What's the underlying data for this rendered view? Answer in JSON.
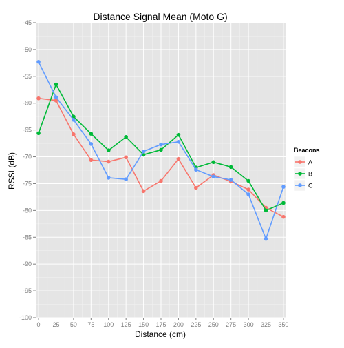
{
  "chart_data": {
    "type": "line",
    "title": "Distance Signal Mean (Moto G)",
    "xlabel": "Distance (cm)",
    "ylabel": "RSSI (dB)",
    "x": [
      0,
      25,
      50,
      75,
      100,
      125,
      150,
      175,
      200,
      225,
      250,
      275,
      300,
      325,
      350
    ],
    "xticks": [
      0,
      25,
      50,
      75,
      100,
      125,
      150,
      175,
      200,
      225,
      250,
      275,
      300,
      325,
      350
    ],
    "yticks": [
      -45,
      -50,
      -55,
      -60,
      -65,
      -70,
      -75,
      -80,
      -85,
      -90,
      -95,
      -100
    ],
    "xlim": [
      -4,
      354
    ],
    "ylim": [
      -100,
      -45
    ],
    "grid": true,
    "legend": {
      "title": "Beacons",
      "placement": "right"
    },
    "series": [
      {
        "name": "A",
        "color": "#F8766D",
        "values": [
          -59.1,
          -59.5,
          -65.8,
          -70.6,
          -70.9,
          -70.1,
          -76.4,
          -74.5,
          -70.4,
          -75.8,
          -73.4,
          -74.6,
          -76.1,
          -79.5,
          -81.2
        ]
      },
      {
        "name": "B",
        "color": "#00BA38",
        "values": [
          -65.6,
          -56.5,
          -62.5,
          -65.7,
          -68.8,
          -66.3,
          -69.6,
          -68.7,
          -65.9,
          -72.0,
          -71.0,
          -71.9,
          -74.5,
          -80.0,
          -78.6
        ]
      },
      {
        "name": "C",
        "color": "#619CFF",
        "values": [
          -52.3,
          -58.9,
          -63.1,
          -67.6,
          -73.9,
          -74.2,
          -69.0,
          -67.7,
          -67.2,
          -72.4,
          -73.7,
          -74.3,
          -77.0,
          -85.3,
          -75.6
        ]
      }
    ]
  }
}
